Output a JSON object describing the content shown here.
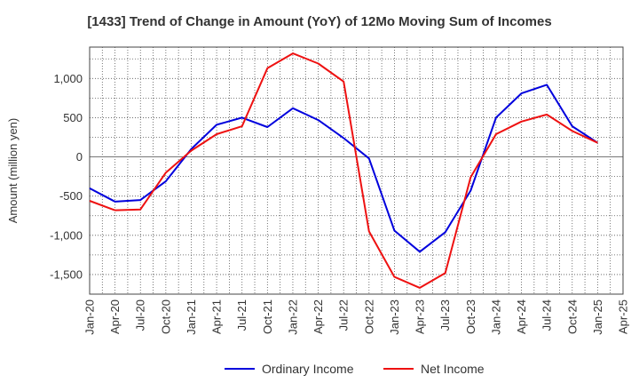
{
  "chart_data": {
    "type": "line",
    "title": "[1433]  Trend of Change in Amount (YoY) of 12Mo Moving Sum of Incomes",
    "xlabel": "",
    "ylabel": "Amount (million yen)",
    "x": [
      "Jan-20",
      "Apr-20",
      "Jul-20",
      "Oct-20",
      "Jan-21",
      "Apr-21",
      "Jul-21",
      "Oct-21",
      "Jan-22",
      "Apr-22",
      "Jul-22",
      "Oct-22",
      "Jan-23",
      "Apr-23",
      "Jul-23",
      "Oct-23",
      "Jan-24",
      "Apr-24",
      "Jul-24",
      "Oct-24",
      "Jan-25",
      "Apr-25"
    ],
    "yticks": [
      -1500,
      -1000,
      -500,
      0,
      500,
      1000
    ],
    "ytick_labels": [
      "-1,500",
      "-1,000",
      "-500",
      "0",
      "500",
      "1,000"
    ],
    "ylim": [
      -1750,
      1400
    ],
    "grid": true,
    "legend_position": "bottom",
    "series": [
      {
        "name": "Ordinary Income",
        "color": "#0000dd",
        "values": [
          -400,
          -570,
          -550,
          -310,
          100,
          410,
          500,
          380,
          620,
          470,
          240,
          -20,
          -940,
          -1210,
          -960,
          -430,
          500,
          810,
          920,
          390,
          180,
          null
        ]
      },
      {
        "name": "Net Income",
        "color": "#ee1111",
        "values": [
          -560,
          -680,
          -670,
          -200,
          80,
          290,
          390,
          1130,
          1320,
          1190,
          960,
          -950,
          -1530,
          -1670,
          -1480,
          -260,
          290,
          450,
          540,
          330,
          180,
          null
        ]
      }
    ]
  }
}
